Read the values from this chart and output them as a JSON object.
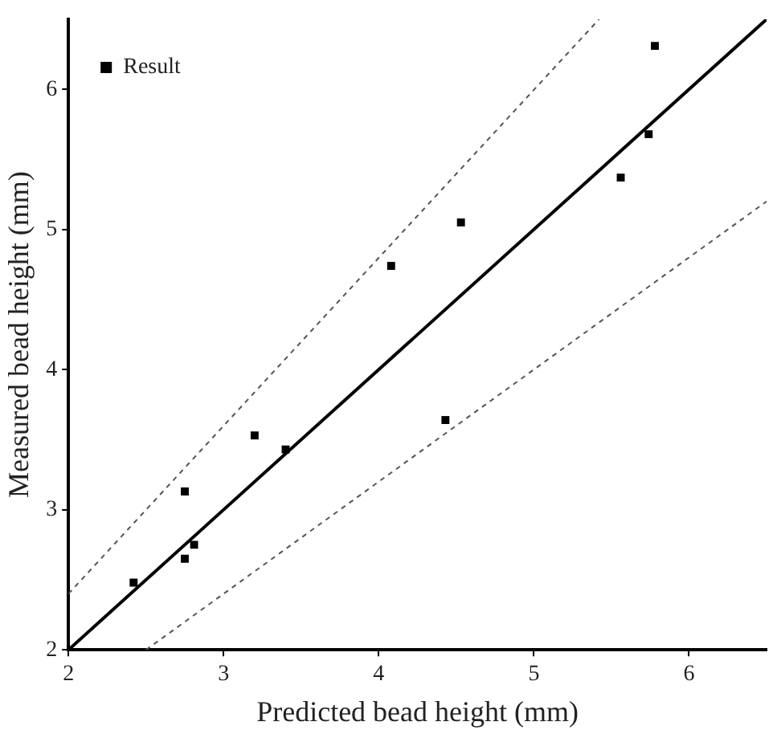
{
  "chart_data": {
    "type": "scatter",
    "xlabel": "Predicted bead height (mm)",
    "ylabel": "Measured bead height (mm)",
    "xlim": [
      2,
      6.5
    ],
    "ylim": [
      2,
      6.5
    ],
    "xticks": [
      2,
      3,
      4,
      5,
      6
    ],
    "yticks": [
      2,
      3,
      4,
      5,
      6
    ],
    "grid": false,
    "legend": "top left",
    "marker": "square",
    "x": [
      2.42,
      2.75,
      2.75,
      2.81,
      3.2,
      3.4,
      4.43,
      4.08,
      4.53,
      5.56,
      5.74,
      5.78
    ],
    "series": [
      {
        "name": "Result",
        "color": "#000000",
        "values": [
          2.48,
          3.13,
          2.65,
          2.75,
          3.53,
          3.43,
          3.64,
          4.74,
          5.05,
          5.37,
          5.68,
          6.31
        ]
      },
      {
        "type": "line",
        "color": "#000000",
        "line_style": "solid",
        "marker": "none",
        "x": [
          2,
          6.5
        ],
        "values": [
          2,
          6.5
        ]
      },
      {
        "type": "line",
        "color": "#555555",
        "line_style": "dashed",
        "marker": "none",
        "x": [
          2,
          5.42
        ],
        "values": [
          2.4,
          6.5
        ]
      },
      {
        "type": "line",
        "color": "#555555",
        "line_style": "dashed",
        "marker": "none",
        "x": [
          2.5,
          6.5
        ],
        "values": [
          2,
          5.2
        ]
      }
    ]
  }
}
